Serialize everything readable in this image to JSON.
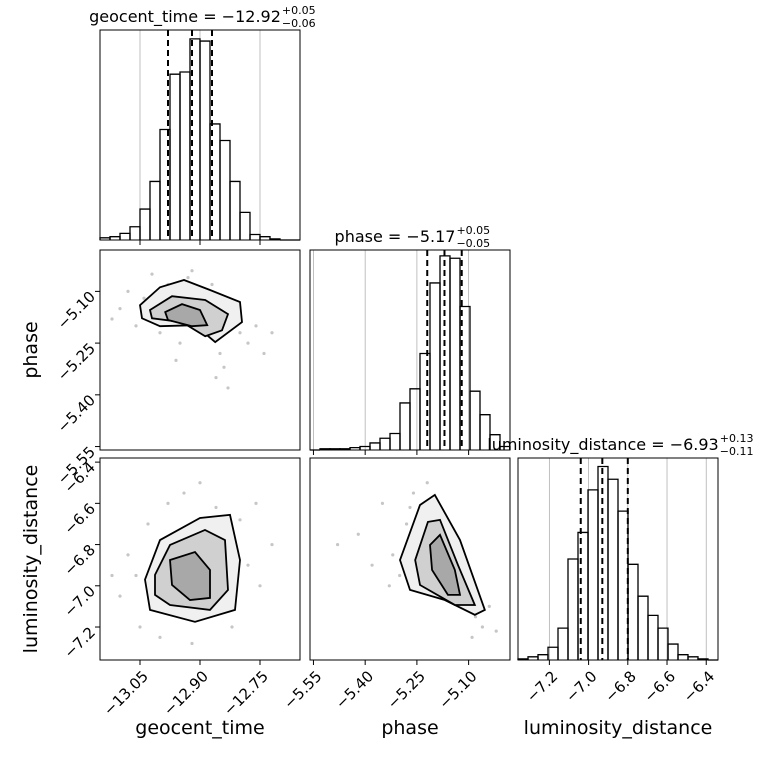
{
  "chart_data": [
    {
      "type": "histogram",
      "title": "geocent_time = −12.92",
      "title_sup": "+0.05",
      "title_sub": "−0.06",
      "bins": [
        -13.15,
        -13.125,
        -13.1,
        -13.075,
        -13.05,
        -13.025,
        -13.0,
        -12.975,
        -12.95,
        -12.925,
        -12.9,
        -12.875,
        -12.85,
        -12.825,
        -12.8,
        -12.775,
        -12.75,
        -12.725,
        -12.7,
        -12.675,
        -12.65
      ],
      "values": [
        2,
        3,
        6,
        12,
        28,
        53,
        100,
        150,
        152,
        182,
        180,
        105,
        90,
        53,
        25,
        5,
        3,
        1,
        0,
        0
      ],
      "quantiles": [
        -12.98,
        -12.92,
        -12.87
      ],
      "xlim": [
        -13.15,
        -12.65
      ],
      "ylim": [
        0,
        190
      ],
      "xticks": [
        -13.05,
        -12.9,
        -12.75
      ],
      "tick_labels": false,
      "grid": true,
      "color": "#000000"
    },
    {
      "type": "scatter",
      "ylabel": "phase",
      "x": [
        -13.1,
        -13.08,
        -13.06,
        -13.02,
        -13.0,
        -12.98,
        -12.95,
        -12.92,
        -12.9,
        -12.88,
        -12.85,
        -12.84,
        -12.83,
        -12.82,
        -12.8,
        -12.78,
        -12.76,
        -12.72,
        -13.12,
        -12.96,
        -12.93,
        -12.87,
        -13.04,
        -12.86,
        -12.74
      ],
      "y": [
        -5.15,
        -5.1,
        -5.2,
        -5.05,
        -5.22,
        -5.08,
        -5.25,
        -5.04,
        -5.12,
        -5.22,
        -5.28,
        -5.32,
        -5.38,
        -5.18,
        -5.22,
        -5.25,
        -5.2,
        -5.22,
        -5.18,
        -5.3,
        -5.06,
        -5.08,
        -5.12,
        -5.35,
        -5.28
      ],
      "contours": [
        {
          "x": [
            -13.05,
            -13.0,
            -12.94,
            -12.875,
            -12.8,
            -12.795,
            -12.862,
            -12.912,
            -13.0,
            -13.045
          ],
          "y": [
            -5.14,
            -5.088,
            -5.067,
            -5.096,
            -5.131,
            -5.189,
            -5.247,
            -5.198,
            -5.201,
            -5.178
          ]
        },
        {
          "x": [
            -13.025,
            -12.97,
            -12.887,
            -12.83,
            -12.845,
            -12.887,
            -12.945,
            -13.02
          ],
          "y": [
            -5.154,
            -5.114,
            -5.125,
            -5.166,
            -5.213,
            -5.23,
            -5.189,
            -5.178
          ]
        },
        {
          "x": [
            -12.987,
            -12.945,
            -12.9,
            -12.882,
            -12.92,
            -12.98
          ],
          "y": [
            -5.16,
            -5.137,
            -5.154,
            -5.198,
            -5.201,
            -5.183
          ]
        }
      ],
      "contour_fills": [
        "#f0f0f0",
        "#d0d0d0",
        "#a8a8a8"
      ],
      "xlim": [
        -13.15,
        -12.65
      ],
      "ylim": [
        -5.56,
        -4.98
      ],
      "yticks": [
        {
          "value": -5.1,
          "label": "−5.10"
        },
        {
          "value": -5.25,
          "label": "−5.25"
        },
        {
          "value": -5.4,
          "label": "−5.40"
        },
        {
          "value": -5.55,
          "label": "−5.55"
        }
      ],
      "color": "#808080"
    },
    {
      "type": "histogram",
      "title": "phase = −5.17",
      "title_sup": "+0.05",
      "title_sub": "−0.05",
      "bins": [
        -5.56,
        -5.531,
        -5.502,
        -5.473,
        -5.444,
        -5.415,
        -5.386,
        -5.357,
        -5.328,
        -5.299,
        -5.27,
        -5.241,
        -5.212,
        -5.183,
        -5.154,
        -5.125,
        -5.096,
        -5.067,
        -5.038,
        -5.009,
        -4.98
      ],
      "values": [
        0,
        1,
        1,
        1,
        2,
        3,
        6,
        10,
        14,
        40,
        52,
        82,
        142,
        165,
        163,
        122,
        50,
        30,
        13,
        3
      ],
      "quantiles": [
        -5.22,
        -5.17,
        -5.12
      ],
      "xlim": [
        -5.56,
        -4.98
      ],
      "ylim": [
        0,
        170
      ],
      "xticks": [
        -5.55,
        -5.4,
        -5.25,
        -5.1
      ],
      "tick_labels": false,
      "grid": true,
      "color": "#000000"
    },
    {
      "type": "scatter",
      "xlabel": "geocent_time",
      "ylabel": "luminosity_distance",
      "x": [
        -13.1,
        -13.08,
        -13.05,
        -13.03,
        -13.0,
        -12.98,
        -12.96,
        -12.94,
        -12.92,
        -12.9,
        -12.88,
        -12.86,
        -12.84,
        -12.82,
        -12.8,
        -12.78,
        -12.75,
        -12.72,
        -13.12,
        -12.97,
        -12.93,
        -12.87,
        -13.06,
        -12.85,
        -12.76
      ],
      "y": [
        -7.05,
        -6.85,
        -7.2,
        -6.7,
        -7.25,
        -6.6,
        -7.1,
        -6.55,
        -7.28,
        -6.5,
        -7.15,
        -6.62,
        -6.75,
        -7.2,
        -6.68,
        -6.9,
        -7.0,
        -6.8,
        -6.95,
        -6.9,
        -7.0,
        -6.85,
        -6.95,
        -7.08,
        -6.6
      ],
      "contours": [
        {
          "x": [
            -13.0375,
            -13.0,
            -12.9,
            -12.825,
            -12.8,
            -12.8125,
            -12.9125,
            -13.025
          ],
          "y": [
            -6.97,
            -6.778,
            -6.671,
            -6.656,
            -6.875,
            -7.117,
            -7.175,
            -7.117
          ]
        },
        {
          "x": [
            -13.0125,
            -12.975,
            -12.8875,
            -12.8375,
            -12.83,
            -12.875,
            -12.975,
            -13.0125
          ],
          "y": [
            -6.947,
            -6.802,
            -6.729,
            -6.778,
            -7.02,
            -7.117,
            -7.093,
            -7.044
          ]
        },
        {
          "x": [
            -12.975,
            -12.9125,
            -12.875,
            -12.875,
            -12.925,
            -12.97
          ],
          "y": [
            -6.875,
            -6.836,
            -6.923,
            -7.059,
            -7.069,
            -6.996
          ]
        }
      ],
      "contour_fills": [
        "#f0f0f0",
        "#d0d0d0",
        "#a8a8a8"
      ],
      "xlim": [
        -13.15,
        -12.65
      ],
      "ylim": [
        -7.36,
        -6.38
      ],
      "xticks": [
        {
          "value": -13.05,
          "label": "−13.05"
        },
        {
          "value": -12.9,
          "label": "−12.90"
        },
        {
          "value": -12.75,
          "label": "−12.75"
        }
      ],
      "yticks": [
        {
          "value": -7.2,
          "label": "−7.2"
        },
        {
          "value": -7.0,
          "label": "−7.0"
        },
        {
          "value": -6.8,
          "label": "−6.8"
        },
        {
          "value": -6.6,
          "label": "−6.6"
        },
        {
          "value": -6.4,
          "label": "−6.4"
        }
      ],
      "color": "#808080"
    },
    {
      "type": "scatter",
      "xlabel": "phase",
      "x": [
        -5.42,
        -5.38,
        -5.35,
        -5.32,
        -5.3,
        -5.28,
        -5.26,
        -5.24,
        -5.22,
        -5.2,
        -5.18,
        -5.16,
        -5.14,
        -5.12,
        -5.1,
        -5.08,
        -5.06,
        -5.04,
        -5.02,
        -5.33,
        -5.27,
        -5.19,
        -5.13,
        -5.09,
        -5.48
      ],
      "y": [
        -6.75,
        -6.9,
        -6.6,
        -6.85,
        -6.95,
        -6.7,
        -6.55,
        -6.8,
        -6.5,
        -6.65,
        -6.72,
        -6.9,
        -7.0,
        -7.1,
        -7.05,
        -7.15,
        -7.2,
        -7.1,
        -7.22,
        -7.0,
        -6.62,
        -6.6,
        -6.85,
        -7.25,
        -6.8
      ],
      "contours": [
        {
          "x": [
            -5.299,
            -5.241,
            -5.198,
            -5.125,
            -5.053,
            -5.082,
            -5.169,
            -5.27
          ],
          "y": [
            -6.875,
            -6.608,
            -6.559,
            -6.778,
            -7.117,
            -7.141,
            -7.069,
            -7.02
          ]
        },
        {
          "x": [
            -5.255,
            -5.218,
            -5.183,
            -5.131,
            -5.082,
            -5.14,
            -5.241
          ],
          "y": [
            -6.875,
            -6.69,
            -6.68,
            -6.899,
            -7.093,
            -7.093,
            -6.996
          ]
        },
        {
          "x": [
            -5.212,
            -5.183,
            -5.14,
            -5.125,
            -5.16,
            -5.206
          ],
          "y": [
            -6.802,
            -6.753,
            -6.923,
            -7.044,
            -7.044,
            -6.923
          ]
        }
      ],
      "contour_fills": [
        "#f0f0f0",
        "#d0d0d0",
        "#a8a8a8"
      ],
      "xlim": [
        -5.56,
        -4.98
      ],
      "ylim": [
        -7.36,
        -6.38
      ],
      "xticks": [
        {
          "value": -5.55,
          "label": "−5.55"
        },
        {
          "value": -5.4,
          "label": "−5.40"
        },
        {
          "value": -5.25,
          "label": "−5.25"
        },
        {
          "value": -5.1,
          "label": "−5.10"
        }
      ],
      "color": "#808080"
    },
    {
      "type": "histogram",
      "title": "luminosity_distance = −6.93",
      "title_sup": "+0.13",
      "title_sub": "−0.11",
      "xlabel": "luminosity_distance",
      "bins": [
        -7.36,
        -7.309,
        -7.258,
        -7.207,
        -7.156,
        -7.105,
        -7.054,
        -7.003,
        -6.952,
        -6.901,
        -6.85,
        -6.799,
        -6.748,
        -6.697,
        -6.646,
        -6.595,
        -6.544,
        -6.493,
        -6.442,
        -6.391,
        -6.34
      ],
      "values": [
        1,
        3,
        5,
        12,
        30,
        95,
        120,
        160,
        182,
        170,
        140,
        90,
        60,
        42,
        30,
        15,
        5,
        3,
        1,
        0
      ],
      "quantiles": [
        -7.04,
        -6.93,
        -6.8
      ],
      "xlim": [
        -7.36,
        -6.34
      ],
      "ylim": [
        0,
        190
      ],
      "xticks": [
        {
          "value": -7.2,
          "label": "−7.2"
        },
        {
          "value": -7.0,
          "label": "−7.0"
        },
        {
          "value": -6.8,
          "label": "−6.8"
        },
        {
          "value": -6.6,
          "label": "−6.6"
        },
        {
          "value": -6.4,
          "label": "−6.4"
        }
      ],
      "grid": true,
      "color": "#000000"
    }
  ]
}
